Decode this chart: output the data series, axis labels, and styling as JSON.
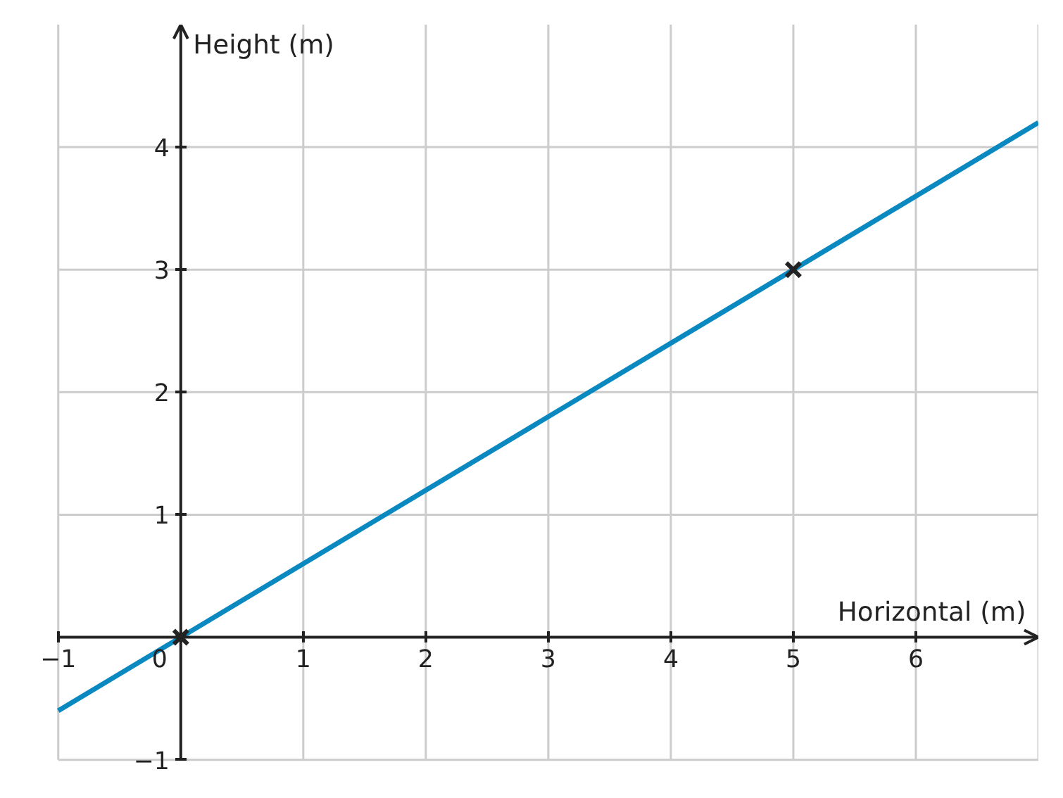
{
  "chart_data": {
    "type": "line",
    "xlabel": "Horizontal (m)",
    "ylabel": "Height (m)",
    "xlim": [
      -1,
      7
    ],
    "ylim": [
      -1,
      5
    ],
    "xticks": [
      {
        "value": -1,
        "label": "−1"
      },
      0,
      1,
      2,
      3,
      4,
      5,
      6
    ],
    "yticks": [
      {
        "value": -1,
        "label": "−1"
      },
      {
        "value": 0,
        "label": null
      },
      1,
      2,
      3,
      4
    ],
    "grid": true,
    "series": [
      {
        "color": "#0a88c0",
        "x": [
          -1,
          7
        ],
        "values": [
          -0.6,
          4.2
        ],
        "marker": "none"
      },
      {
        "type": "scatter",
        "color": "#222222",
        "x": [
          0,
          5
        ],
        "values": [
          0,
          3
        ],
        "marker": "cross"
      }
    ]
  }
}
